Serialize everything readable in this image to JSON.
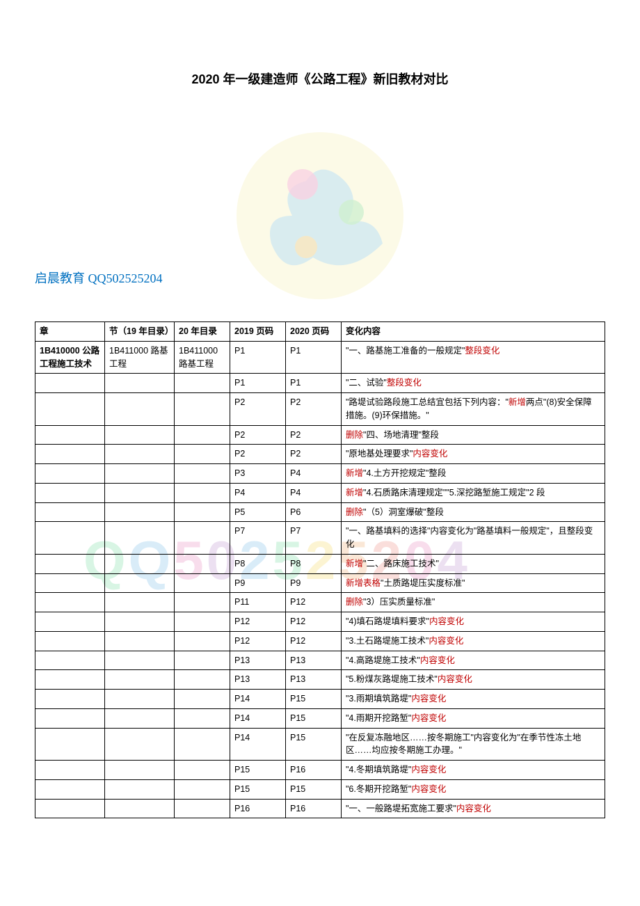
{
  "title": "2020 年一级建造师《公路工程》新旧教材对比",
  "branding": "启晨教育 QQ502525204",
  "watermark_text": "QQ502525204",
  "columns": {
    "chapter": "章",
    "section19": "节（19 年目录）",
    "section20": "20 年目录",
    "page19": "2019 页码",
    "page20": "2020 页码",
    "change": "变化内容"
  },
  "rows": [
    {
      "chapter": "1B410000 公路工程施工技术",
      "section19": "1B411000 路基工程",
      "section20": "1B411000 路基工程",
      "page19": "P1",
      "page20": "P1",
      "change": [
        {
          "t": "\"一、路基施工准备的一般规定\""
        },
        {
          "t": "整段变化",
          "red": true
        }
      ],
      "chapter_bold": true
    },
    {
      "page19": "P1",
      "page20": "P1",
      "change": [
        {
          "t": "\"二、试验\""
        },
        {
          "t": "整段变化",
          "red": true
        }
      ]
    },
    {
      "page19": "P2",
      "page20": "P2",
      "change": [
        {
          "t": "\"路堤试验路段施工总结宜包括下列内容：\""
        },
        {
          "t": "新增",
          "red": true
        },
        {
          "t": "两点\"(8)安全保障措施。(9)环保措施。\""
        }
      ]
    },
    {
      "page19": "P2",
      "page20": "P2",
      "change": [
        {
          "t": "删除",
          "red": true
        },
        {
          "t": "\"四、场地清理\"整段"
        }
      ]
    },
    {
      "page19": "P2",
      "page20": "P2",
      "change": [
        {
          "t": "\"原地基处理要求\""
        },
        {
          "t": "内容变化",
          "red": true
        }
      ]
    },
    {
      "page19": "P3",
      "page20": "P4",
      "change": [
        {
          "t": "新增",
          "red": true
        },
        {
          "t": "\"4.土方开挖规定\"整段"
        }
      ]
    },
    {
      "page19": "P4",
      "page20": "P4",
      "change": [
        {
          "t": "新增",
          "red": true
        },
        {
          "t": "\"4.石质路床清理规定\"\"5.深挖路堑施工规定\"2 段"
        }
      ]
    },
    {
      "page19": "P5",
      "page20": "P6",
      "change": [
        {
          "t": "删除",
          "red": true
        },
        {
          "t": "\"（5）洞室爆破\"整段"
        }
      ]
    },
    {
      "page19": "P7",
      "page20": "P7",
      "change": [
        {
          "t": "\"一、路基填料的选择\"内容变化为\"路基填料一般规定\"，且整段变化"
        }
      ]
    },
    {
      "page19": "P8",
      "page20": "P8",
      "change": [
        {
          "t": "新增",
          "red": true
        },
        {
          "t": "\"二、路床施工技术\""
        }
      ]
    },
    {
      "page19": "P9",
      "page20": "P9",
      "change": [
        {
          "t": "新增表格",
          "red": true
        },
        {
          "t": "\"土质路堤压实度标准\""
        }
      ]
    },
    {
      "page19": "P11",
      "page20": "P12",
      "change": [
        {
          "t": "删除",
          "red": true
        },
        {
          "t": "\"3）压实质量标准\""
        }
      ]
    },
    {
      "page19": "P12",
      "page20": "P12",
      "change": [
        {
          "t": "\"4)填石路堤填料要求\""
        },
        {
          "t": "内容变化",
          "red": true
        }
      ]
    },
    {
      "page19": "P12",
      "page20": "P12",
      "change": [
        {
          "t": "\"3.土石路堤施工技术\""
        },
        {
          "t": "内容变化",
          "red": true
        }
      ]
    },
    {
      "page19": "P13",
      "page20": "P13",
      "change": [
        {
          "t": "\"4.高路堤施工技术\""
        },
        {
          "t": "内容变化",
          "red": true
        }
      ]
    },
    {
      "page19": "P13",
      "page20": "P13",
      "change": [
        {
          "t": "\"5.粉煤灰路堤施工技术\""
        },
        {
          "t": "内容变化",
          "red": true
        }
      ]
    },
    {
      "page19": "P14",
      "page20": "P15",
      "change": [
        {
          "t": "\"3.雨期填筑路堤\""
        },
        {
          "t": "内容变化",
          "red": true
        }
      ]
    },
    {
      "page19": "P14",
      "page20": "P15",
      "change": [
        {
          "t": "\"4.雨期开挖路堑\""
        },
        {
          "t": "内容变化",
          "red": true
        }
      ]
    },
    {
      "page19": "P14",
      "page20": "P15",
      "change": [
        {
          "t": "\"在反复冻融地区……按冬期施工\"内容变化为\"在季节性冻土地区……均应按冬期施工办理。\""
        }
      ]
    },
    {
      "page19": "P15",
      "page20": "P16",
      "change": [
        {
          "t": "\"4.冬期填筑路堤\""
        },
        {
          "t": "内容变化",
          "red": true
        }
      ]
    },
    {
      "page19": "P15",
      "page20": "P15",
      "change": [
        {
          "t": "\"6.冬期开挖路堑\""
        },
        {
          "t": "内容变化",
          "red": true
        }
      ]
    },
    {
      "page19": "P16",
      "page20": "P16",
      "change": [
        {
          "t": "\"一、一般路堤拓宽施工要求\""
        },
        {
          "t": "内容变化",
          "red": true
        }
      ]
    }
  ]
}
